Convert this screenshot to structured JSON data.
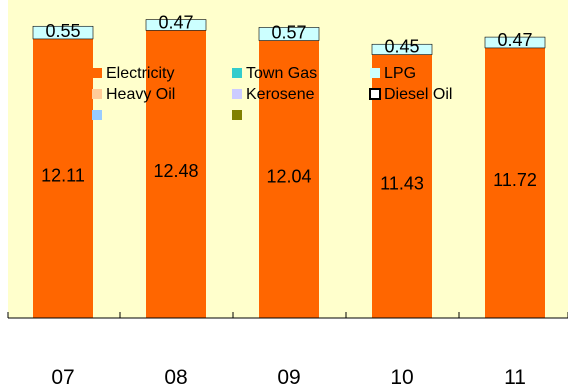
{
  "chart_data": {
    "type": "bar",
    "stacked": true,
    "categories": [
      "07",
      "08",
      "09",
      "10",
      "11"
    ],
    "series": [
      {
        "name": "Electricity",
        "color": "#FF6600",
        "values": [
          12.11,
          12.48,
          12.04,
          11.43,
          11.72
        ]
      },
      {
        "name": "Town Gas",
        "color": "#33CCCC",
        "values": [
          0,
          0,
          0,
          0,
          0
        ]
      },
      {
        "name": "LPG",
        "color": "#CCFFFF",
        "values": [
          0.55,
          0.47,
          0.57,
          0.45,
          0.47
        ]
      },
      {
        "name": "Heavy Oil",
        "color": "#FFCC99",
        "values": [
          0,
          0,
          0,
          0,
          0
        ]
      },
      {
        "name": "Kerosene",
        "color": "#CCCCFF",
        "values": [
          0,
          0,
          0,
          0,
          0
        ]
      },
      {
        "name": "Diesel Oil",
        "color": "#FFFFFF",
        "values": [
          0,
          0,
          0,
          0,
          0
        ]
      },
      {
        "name": "",
        "color": "#99CCFF",
        "values": [
          0,
          0,
          0,
          0,
          0
        ]
      },
      {
        "name": "",
        "color": "#808000",
        "values": [
          0,
          0,
          0,
          0,
          0
        ]
      }
    ],
    "data_labels": {
      "Electricity": [
        "12.11",
        "12.48",
        "12.04",
        "11.43",
        "11.72"
      ],
      "LPG": [
        "0.55",
        "0.47",
        "0.57",
        "0.45",
        "0.47"
      ]
    },
    "ylim": [
      0,
      13.8
    ],
    "grid": false,
    "legend_position": "top-inside",
    "plot_background": "#FFFFCC"
  }
}
